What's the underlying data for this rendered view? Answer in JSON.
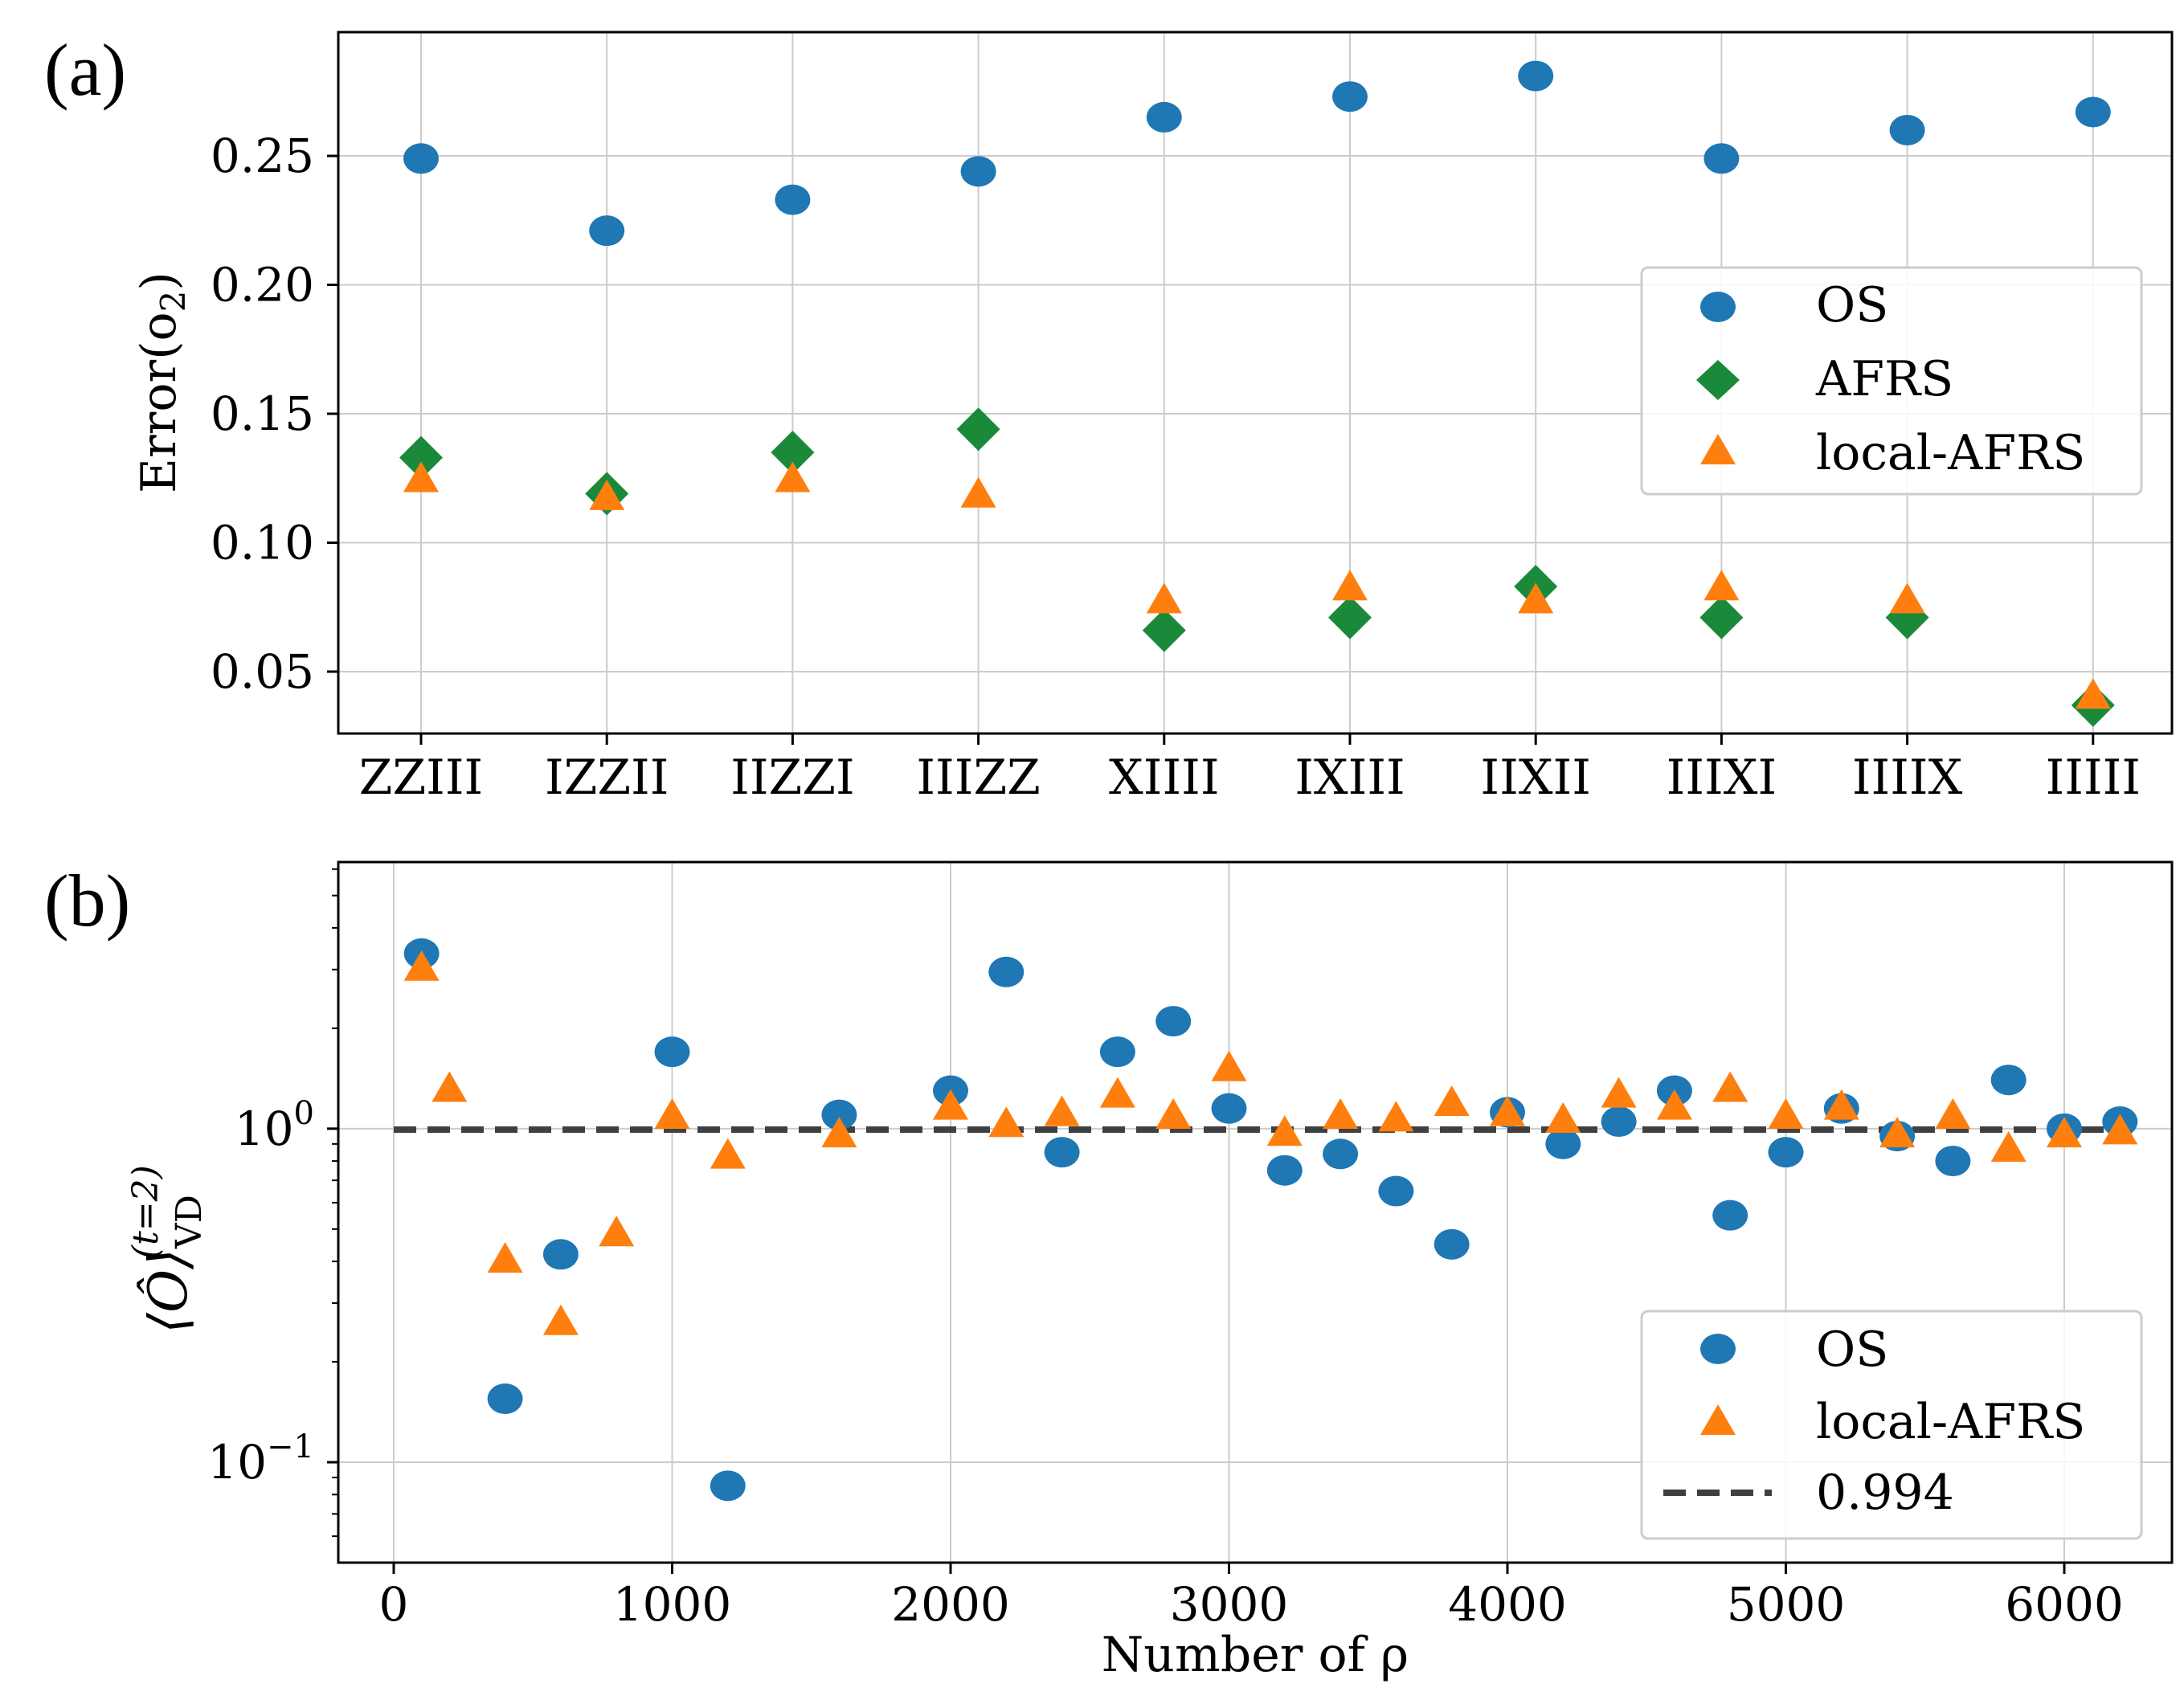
{
  "panel_a_label": "(a)",
  "panel_b_label": "(b)",
  "colors": {
    "os": "#1f77b4",
    "afrs": "#1a8a3a",
    "local_afrs": "#ff7f0e",
    "dashed": "#404040",
    "grid": "#cccccc",
    "axis": "#000000"
  },
  "chart_data": [
    {
      "type": "scatter",
      "panel": "a",
      "ylabel": "Error(o",
      "ylabel_sub": "2",
      "ylabel_close": ")",
      "categories": [
        "ZZIII",
        "IZZII",
        "IIZZI",
        "IIIZZ",
        "XIIII",
        "IXIII",
        "IIXII",
        "IIIXI",
        "IIIIX",
        "IIIII"
      ],
      "ylim": [
        0.026,
        0.298
      ],
      "yticks": [
        0.05,
        0.1,
        0.15,
        0.2,
        0.25
      ],
      "ytick_labels": [
        "0.05",
        "0.10",
        "0.15",
        "0.20",
        "0.25"
      ],
      "legend_position": "right",
      "series": [
        {
          "name": "OS",
          "marker": "circle",
          "values": [
            0.249,
            0.221,
            0.233,
            0.244,
            0.265,
            0.273,
            0.281,
            0.249,
            0.26,
            0.267
          ]
        },
        {
          "name": "AFRS",
          "marker": "diamond",
          "values": [
            0.133,
            0.119,
            0.135,
            0.144,
            0.066,
            0.071,
            0.083,
            0.071,
            0.071,
            0.037
          ]
        },
        {
          "name": "local-AFRS",
          "marker": "triangle",
          "values": [
            0.124,
            0.117,
            0.124,
            0.118,
            0.077,
            0.082,
            0.077,
            0.082,
            0.077,
            0.04
          ]
        }
      ]
    },
    {
      "type": "scatter",
      "panel": "b",
      "yscale": "log",
      "xlabel": "Number of ρ",
      "ylabel": "⟨Ô⟩",
      "ylabel_sup": "(t=2)",
      "ylabel_sub": "VD",
      "xlim": [
        -200,
        6380
      ],
      "ylim": [
        0.05,
        6.3
      ],
      "xticks": [
        0,
        1000,
        2000,
        3000,
        4000,
        5000,
        6000
      ],
      "xtick_labels": [
        "0",
        "1000",
        "2000",
        "3000",
        "4000",
        "5000",
        "6000"
      ],
      "yticks": [
        0.1,
        1.0
      ],
      "ytick_base": [
        "10",
        "10"
      ],
      "ytick_exp": [
        "−1",
        "0"
      ],
      "legend_position": "lower right",
      "series": [
        {
          "name": "OS",
          "marker": "circle",
          "x": [
            100,
            400,
            600,
            1000,
            1200,
            1600,
            2000,
            2200,
            2400,
            2600,
            2800,
            3000,
            3200,
            3400,
            3600,
            3800,
            4000,
            4200,
            4400,
            4600,
            4800,
            5000,
            5200,
            5400,
            5600,
            5800,
            6000,
            6200
          ],
          "y": [
            3.35,
            0.155,
            0.42,
            1.7,
            0.085,
            1.1,
            1.3,
            2.95,
            0.85,
            1.7,
            2.1,
            1.15,
            0.75,
            0.84,
            0.65,
            0.45,
            1.12,
            0.9,
            1.05,
            1.3,
            0.55,
            0.85,
            1.15,
            0.95,
            0.8,
            1.4,
            1.0,
            1.05
          ]
        },
        {
          "name": "local-AFRS",
          "marker": "triangle",
          "x": [
            100,
            200,
            400,
            600,
            800,
            1000,
            1200,
            1600,
            2000,
            2200,
            2400,
            2600,
            2800,
            3000,
            3200,
            3400,
            3600,
            3800,
            4000,
            4200,
            4400,
            4600,
            4800,
            5000,
            5200,
            5400,
            5600,
            5800,
            6000,
            6200
          ],
          "y": [
            3.0,
            1.3,
            0.4,
            0.26,
            0.48,
            1.08,
            0.82,
            0.95,
            1.15,
            1.02,
            1.1,
            1.25,
            1.08,
            1.5,
            0.96,
            1.08,
            1.06,
            1.18,
            1.1,
            1.05,
            1.25,
            1.15,
            1.3,
            1.08,
            1.15,
            0.95,
            1.08,
            0.86,
            0.95,
            0.97
          ]
        },
        {
          "name": "0.994",
          "marker": "dashed-line",
          "value": 0.994,
          "x_range": [
            0,
            6200
          ]
        }
      ]
    }
  ]
}
